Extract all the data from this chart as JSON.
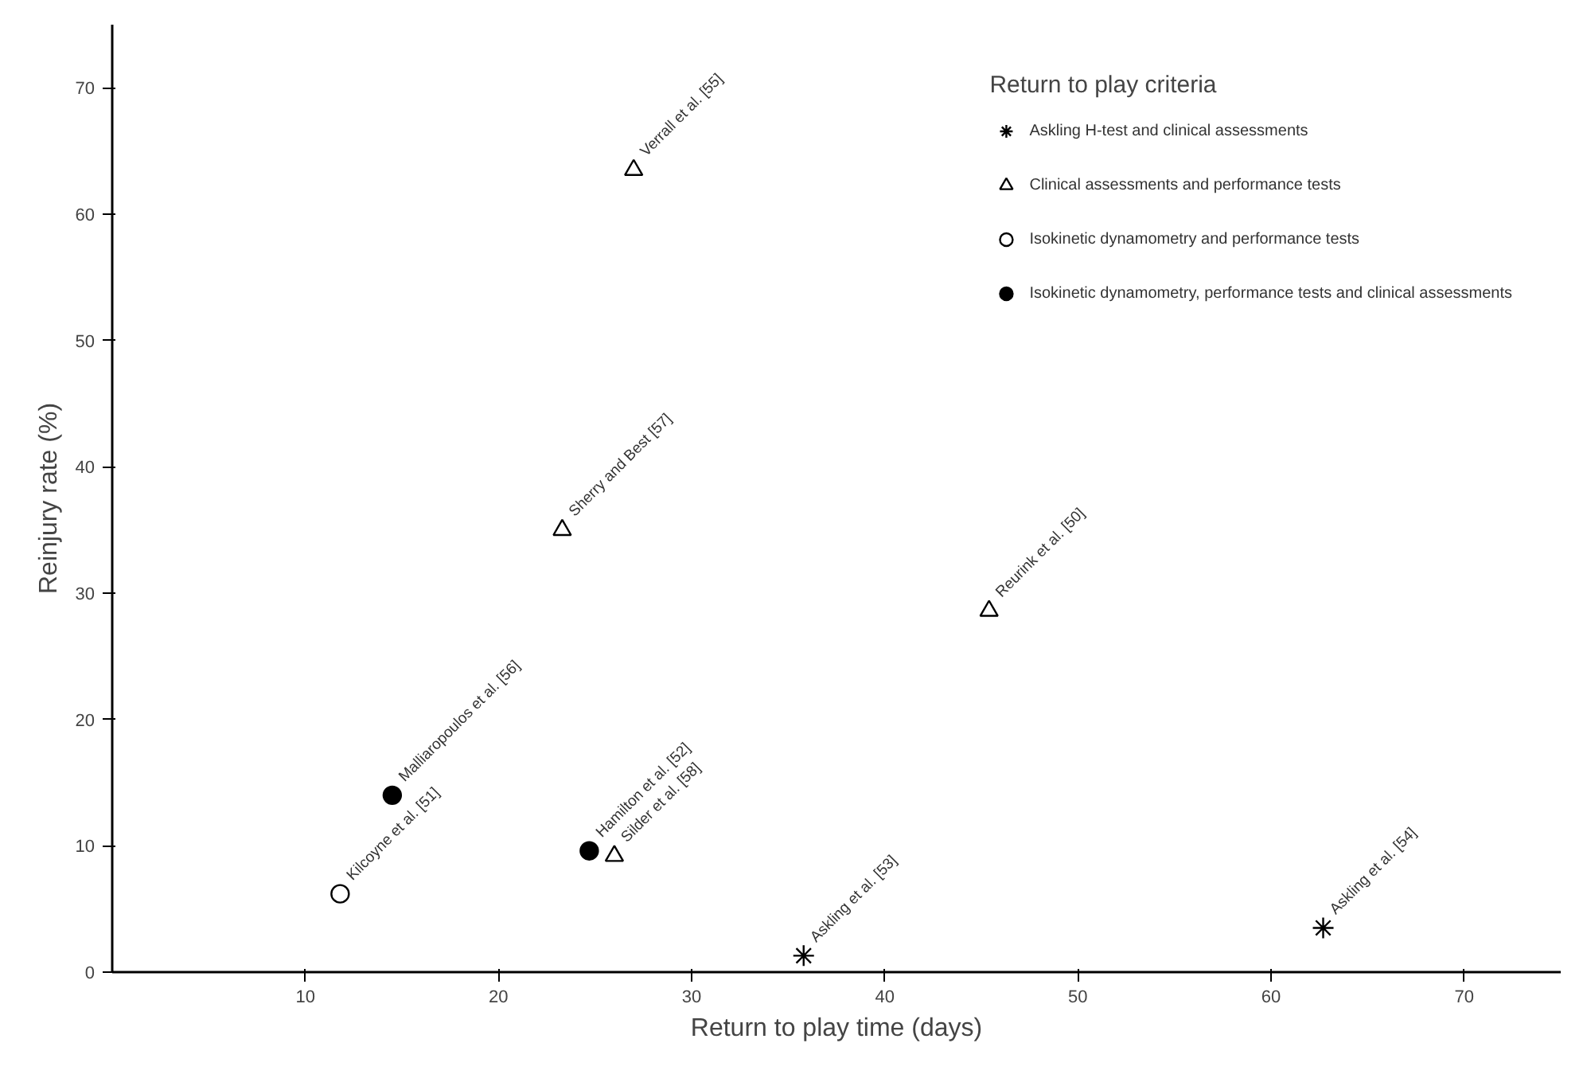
{
  "chart_data": {
    "type": "scatter",
    "xlabel": "Return to play time (days)",
    "ylabel": "Reinjury rate (%)",
    "legend_title": "Return to play criteria",
    "xlim": [
      0,
      75
    ],
    "ylim": [
      0,
      75
    ],
    "xticks": [
      10,
      20,
      30,
      40,
      50,
      60,
      70
    ],
    "yticks": [
      0,
      10,
      20,
      30,
      40,
      50,
      60,
      70
    ],
    "grid": false,
    "legend": "top right",
    "series": [
      {
        "name": "Askling H-test and clinical assessments",
        "color": "#000000",
        "marker": "cross",
        "x": [
          35.8,
          62.7
        ],
        "values": [
          1.3,
          3.5
        ]
      },
      {
        "name": "Clinical assessments and performance tests",
        "color": "#ffffff",
        "marker": "triangle",
        "x": [
          27.0,
          23.3,
          45.4,
          26.0
        ],
        "values": [
          63.5,
          35.0,
          28.6,
          9.2
        ]
      },
      {
        "name": "Isokinetic dynamometry and performance tests",
        "color": "#ffffff",
        "marker": "circle",
        "x": [
          11.8
        ],
        "values": [
          6.2
        ]
      },
      {
        "name": "Isokinetic dynamometry, performance tests and clinical assessments",
        "color": "#000000",
        "marker": "circle",
        "x": [
          14.5,
          24.7
        ],
        "values": [
          14.0,
          9.6
        ]
      }
    ],
    "annotations": [
      {
        "text": "Askling et al. [53]",
        "x": 35.8,
        "y": 1.3
      },
      {
        "text": "Askling et al. [54]",
        "x": 62.7,
        "y": 3.5
      },
      {
        "text": "Verrall et al. [55]",
        "x": 27.0,
        "y": 63.5
      },
      {
        "text": "Sherry and Best [57]",
        "x": 23.3,
        "y": 35.0
      },
      {
        "text": "Reurink et al. [50]",
        "x": 45.4,
        "y": 28.6
      },
      {
        "text": "Silder et al. [58]",
        "x": 26.0,
        "y": 9.2
      },
      {
        "text": "Kilcoyne et al. [51]",
        "x": 11.8,
        "y": 6.2
      },
      {
        "text": "Malliaropoulos et al. [56]",
        "x": 14.5,
        "y": 14.0
      },
      {
        "text": "Hamilton et al. [52]",
        "x": 24.7,
        "y": 9.6
      }
    ]
  }
}
